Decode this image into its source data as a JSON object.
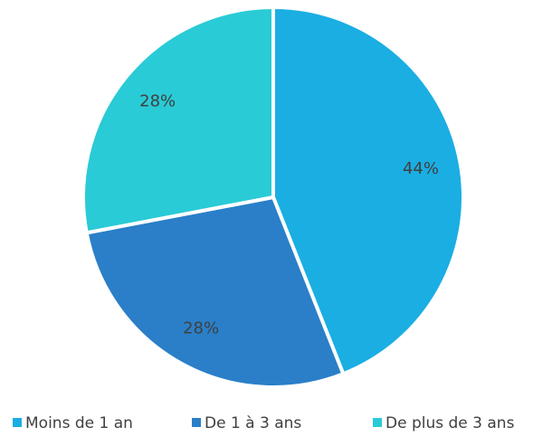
{
  "chart_data": {
    "type": "pie",
    "categories": [
      "Moins de 1 an",
      "De 1 à 3 ans",
      "De plus de 3 ans"
    ],
    "values": [
      44,
      28,
      28
    ],
    "value_labels": [
      "44%",
      "28%",
      "28%"
    ],
    "colors": [
      "#1aaee3",
      "#2a7fc8",
      "#29cbd6"
    ],
    "legend": "bottom"
  }
}
